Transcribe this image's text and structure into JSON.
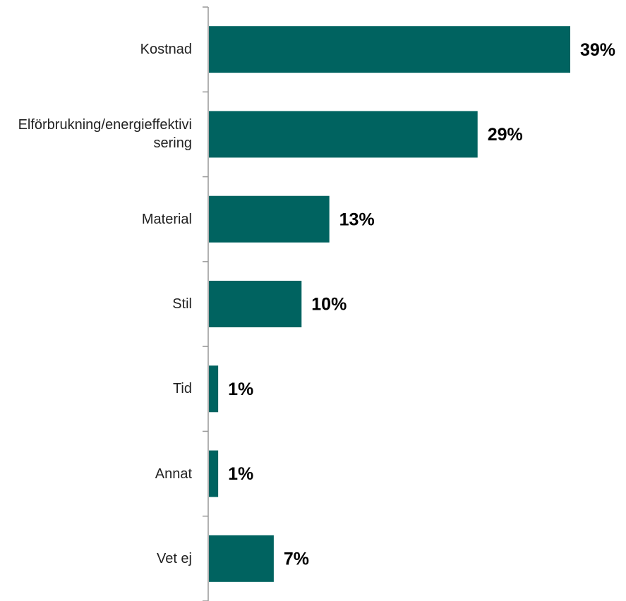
{
  "chart_data": {
    "type": "bar",
    "orientation": "horizontal",
    "categories": [
      "Kostnad",
      "Elförbrukning/energieffektivisering",
      "Material",
      "Stil",
      "Tid",
      "Annat",
      "Vet ej"
    ],
    "values": [
      39,
      29,
      13,
      10,
      1,
      1,
      7
    ],
    "value_labels": [
      "39%",
      "29%",
      "13%",
      "10%",
      "1%",
      "1%",
      "7%"
    ],
    "color": "#006360"
  }
}
